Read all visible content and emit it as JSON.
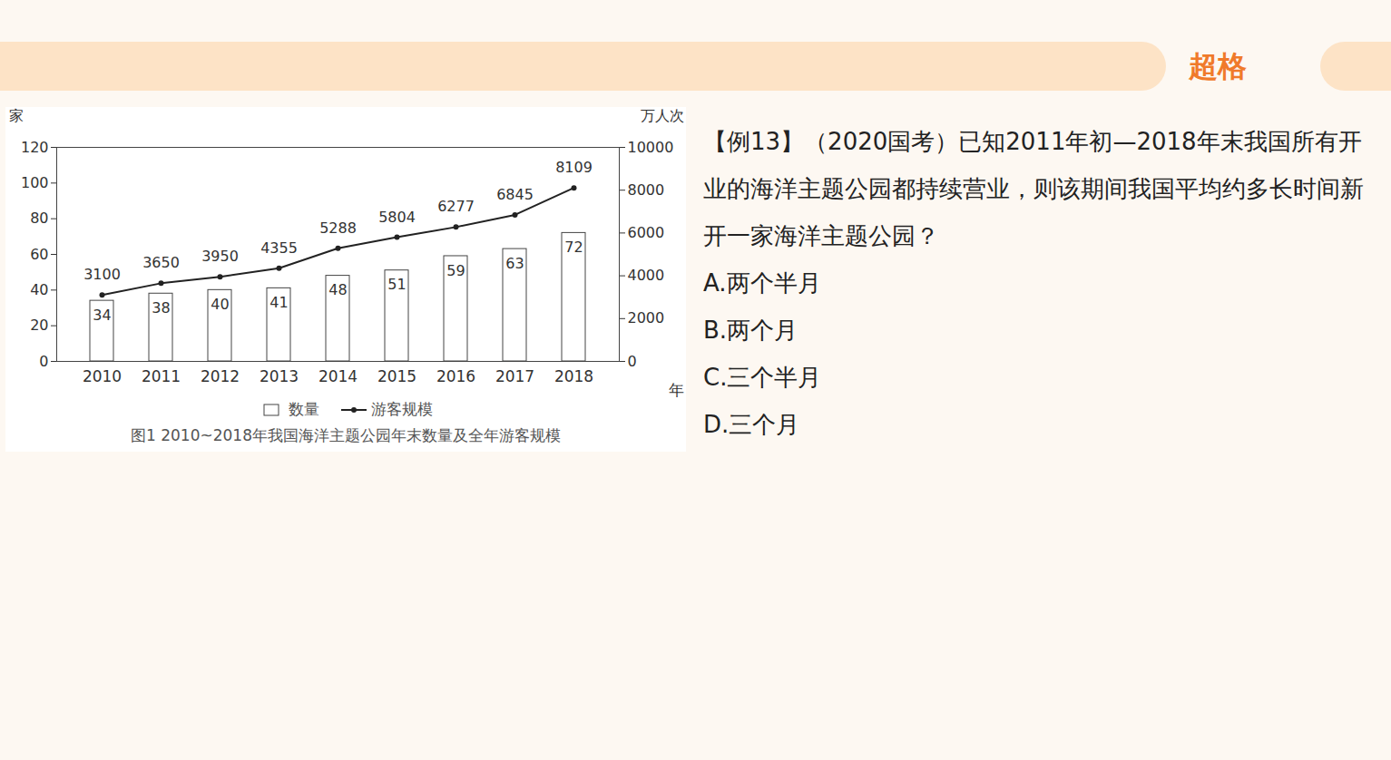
{
  "header": {
    "logo": "超格"
  },
  "chart_data": {
    "type": "bar",
    "caption": "图1 2010~2018年我国海洋主题公园年末数量及全年游客规模",
    "categories": [
      "2010",
      "2011",
      "2012",
      "2013",
      "2014",
      "2015",
      "2016",
      "2017",
      "2018"
    ],
    "xlabel": "年",
    "ylabel": "家",
    "y2label": "万人次",
    "ylim": [
      0,
      120
    ],
    "yticks": [
      0,
      20,
      40,
      60,
      80,
      100,
      120
    ],
    "y2lim": [
      0,
      10000
    ],
    "y2ticks": [
      0,
      2000,
      4000,
      6000,
      8000,
      10000
    ],
    "data_labels": true,
    "legend": "bottom",
    "series": [
      {
        "name": "数量",
        "type": "bar",
        "color": "#ffffff",
        "values": [
          34,
          38,
          40,
          41,
          48,
          51,
          59,
          63,
          72
        ]
      },
      {
        "name": "游客规模",
        "type": "line",
        "axis": "y2",
        "color": "#222222",
        "marker": "circle",
        "values": [
          3100,
          3650,
          3950,
          4355,
          5288,
          5804,
          6277,
          6845,
          8109
        ]
      }
    ]
  },
  "question": {
    "text": "【例13】（2020国考）已知2011年初—2018年末我国所有开业的海洋主题公园都持续营业，则该期间我国平均约多长时间新开一家海洋主题公园？",
    "options": [
      "A.两个半月",
      "B.两个月",
      "C.三个半月",
      "D.三个月"
    ]
  }
}
